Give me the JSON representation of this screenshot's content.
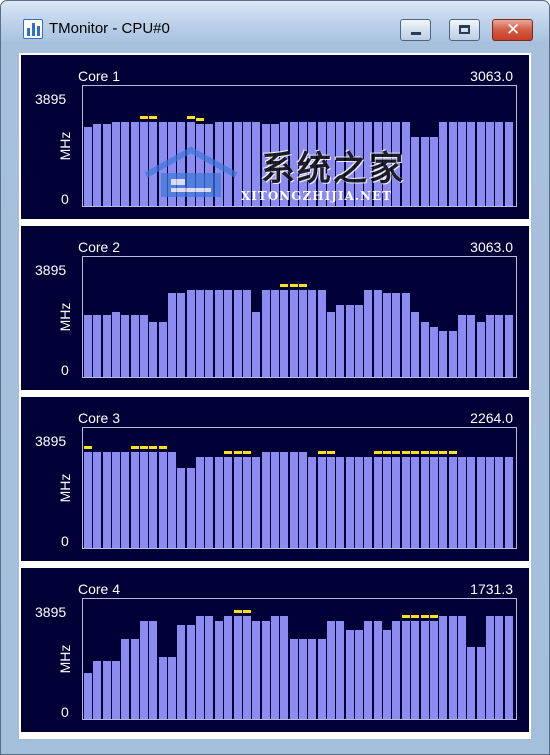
{
  "window": {
    "title": "TMonitor - CPU#0",
    "close_glyph": "✕",
    "icons": {
      "app": "bar-chart-icon",
      "minimize": "minimize-icon",
      "maximize": "maximize-icon",
      "close": "close-icon"
    }
  },
  "colors": {
    "background": "#000036",
    "bar": "#8c8cf0",
    "marker": "#ffe11a",
    "text": "#ffffff"
  },
  "watermark": {
    "chinese": "系统之家",
    "latin": "XITONGZHIJIA.NET"
  },
  "chart_data": [
    {
      "type": "bar",
      "title": "Core 1",
      "current_value": "3063.0",
      "ylabel": "MHz",
      "ylim": [
        0,
        3895
      ],
      "yticks": [
        "3895",
        "0"
      ],
      "values": [
        2580,
        2660,
        2660,
        2740,
        2740,
        2740,
        2740,
        2740,
        2740,
        2740,
        2740,
        2740,
        2660,
        2660,
        2740,
        2740,
        2740,
        2740,
        2740,
        2660,
        2660,
        2740,
        2740,
        2740,
        2740,
        2740,
        2740,
        2740,
        2740,
        2740,
        2740,
        2740,
        2740,
        2740,
        2740,
        2250,
        2250,
        2250,
        2740,
        2740,
        2740,
        2740,
        2740,
        2740,
        2740,
        2740,
        2740,
        2740,
        2740,
        2740,
        1950,
        2740,
        2740,
        2740,
        2740,
        2740,
        2740,
        2500,
        2500,
        2740,
        2740,
        2740,
        2740,
        2660,
        2660,
        2740,
        2740,
        2740,
        2740
      ],
      "markers": [
        6,
        7,
        11,
        12
      ]
    },
    {
      "type": "bar",
      "title": "Core 2",
      "current_value": "3063.0",
      "ylabel": "MHz",
      "ylim": [
        0,
        3895
      ],
      "yticks": [
        "3895",
        "0"
      ],
      "values": [
        2000,
        2000,
        2000,
        2120,
        2000,
        2000,
        2000,
        1800,
        1800,
        2740,
        2740,
        2810,
        2810,
        2810,
        2810,
        2810,
        2810,
        2810,
        2120,
        2810,
        2810,
        2810,
        2810,
        2810,
        2810,
        2810,
        2120,
        2330,
        2330,
        2330,
        2810,
        2810,
        2740,
        2740,
        2740,
        2120,
        1800,
        1630,
        1480,
        1480,
        2000,
        2000,
        1800,
        2000,
        2000,
        2000,
        2000,
        2000,
        2000,
        1800,
        1800,
        1630,
        1630,
        1480,
        1480,
        1480,
        1630,
        1630,
        1800,
        1800,
        1630,
        1630,
        1800,
        2000,
        2000,
        2000,
        2660,
        1480,
        1480,
        1480,
        2000,
        2000,
        2000,
        2810,
        2810,
        2810,
        2810
      ],
      "markers": [
        21,
        22,
        23
      ]
    },
    {
      "type": "bar",
      "title": "Core 3",
      "current_value": "2264.0",
      "ylabel": "MHz",
      "ylim": [
        0,
        3895
      ],
      "yticks": [
        "3895",
        "0"
      ],
      "values": [
        3110,
        3110,
        3110,
        3110,
        3110,
        3110,
        3110,
        3110,
        3110,
        3110,
        2590,
        2590,
        2960,
        2960,
        2960,
        2960,
        2960,
        2960,
        2960,
        3110,
        3110,
        3110,
        3110,
        3110,
        2960,
        2960,
        2960,
        2960,
        2960,
        2960,
        2960,
        2960,
        2960,
        2960,
        2960,
        2960,
        2960,
        2960,
        2960,
        2960,
        2960,
        2960,
        2960,
        2960,
        2960,
        2960,
        2960,
        2960,
        2960,
        2960,
        2960,
        2960,
        2960,
        2960,
        2960,
        2960,
        2960,
        2960,
        2960,
        2960,
        2960,
        2960,
        2960,
        2960,
        2960,
        2960,
        2960,
        2960,
        2960,
        2960,
        2960,
        2960,
        2960,
        2960,
        2960,
        2960,
        2960,
        2960,
        2960,
        2960,
        2960,
        2960,
        1660,
        2960,
        2960,
        2960,
        2960,
        2960
      ],
      "markers": [
        0,
        5,
        6,
        7,
        8,
        15,
        16,
        17,
        25,
        26,
        31,
        32,
        33,
        34,
        35,
        36,
        37,
        38,
        39
      ]
    },
    {
      "type": "bar",
      "title": "Core 4",
      "current_value": "1731.3",
      "ylabel": "MHz",
      "ylim": [
        0,
        3895
      ],
      "yticks": [
        "3895",
        "0"
      ],
      "values": [
        1480,
        1880,
        1880,
        1880,
        2590,
        2590,
        3180,
        3180,
        2000,
        2000,
        3040,
        3040,
        3330,
        3330,
        3180,
        3330,
        3330,
        3330,
        3180,
        3180,
        3330,
        3330,
        2590,
        2590,
        2590,
        2590,
        3180,
        3180,
        2900,
        2900,
        3180,
        3180,
        2900,
        3180,
        3180,
        3180,
        3180,
        3180,
        3330,
        3330,
        3330,
        2340,
        2340,
        3330,
        3330,
        3330,
        3330,
        3180,
        3180,
        2000
      ],
      "markers": [
        16,
        17,
        34,
        35,
        36,
        37
      ]
    }
  ]
}
